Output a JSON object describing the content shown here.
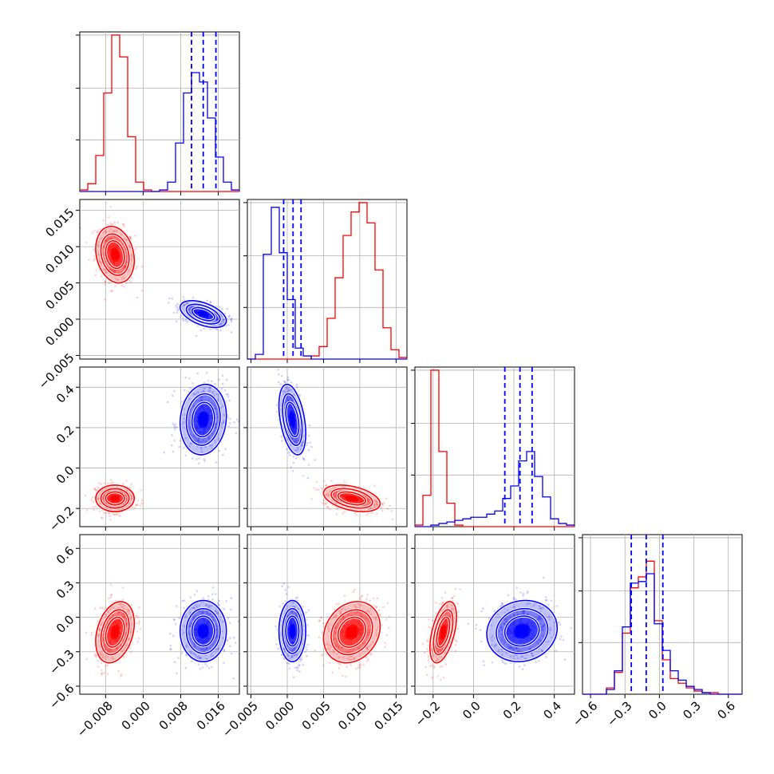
{
  "chart_data": {
    "type": "corner",
    "series": [
      {
        "name": "",
        "color": "#ff0000"
      },
      {
        "name": "",
        "color": "#0000ff"
      }
    ],
    "grid": true,
    "quantile_lines": {
      "series_color": "#0000ff",
      "style": "dashed"
    },
    "params": [
      {
        "range": [
          -0.0135,
          0.0205
        ],
        "ticks": [
          "−0.008",
          "0.000",
          "0.008",
          "0.016"
        ],
        "tick_values": [
          -0.008,
          0.0,
          0.008,
          0.016
        ]
      },
      {
        "range": [
          -0.0055,
          0.0165
        ],
        "ticks": [
          "−0.005",
          "0.000",
          "0.005",
          "0.010",
          "0.015"
        ],
        "tick_values": [
          -0.005,
          0.0,
          0.005,
          0.01,
          0.015
        ]
      },
      {
        "range": [
          -0.29,
          0.5
        ],
        "ticks": [
          "−0.2",
          "0.0",
          "0.2",
          "0.4"
        ],
        "tick_values": [
          -0.2,
          0.0,
          0.2,
          0.4
        ]
      },
      {
        "range": [
          -0.67,
          0.72
        ],
        "ticks": [
          "−0.6",
          "−0.3",
          "0.0",
          "0.3",
          "0.6"
        ],
        "tick_values": [
          -0.6,
          -0.3,
          0.0,
          0.3,
          0.6
        ]
      }
    ],
    "histograms": [
      {
        "param": 0,
        "hist_ticks": [
          0.33,
          0.66,
          1.0
        ],
        "bins": [
          -0.0135,
          -0.0118,
          -0.0101,
          -0.0084,
          -0.0067,
          -0.005,
          -0.0033,
          -0.0016,
          0.0001,
          0.0018,
          0.0035,
          0.0052,
          0.0069,
          0.0086,
          0.0103,
          0.012,
          0.0137,
          0.0154,
          0.0171,
          0.0188,
          0.0205
        ],
        "series": [
          {
            "name": "",
            "color": "#ff0000",
            "values": [
              0.01,
              0.05,
              0.23,
              0.63,
              1.0,
              0.86,
              0.35,
              0.06,
              0.01,
              0,
              0,
              0,
              0,
              0,
              0,
              0,
              0,
              0,
              0,
              0
            ]
          },
          {
            "name": "",
            "color": "#0000ff",
            "values": [
              0,
              0,
              0,
              0,
              0,
              0,
              0,
              0,
              0,
              0,
              0.01,
              0.06,
              0.31,
              0.63,
              0.76,
              0.7,
              0.47,
              0.22,
              0.06,
              0.01
            ]
          }
        ],
        "quantiles": [
          0.0103,
          0.0128,
          0.0155
        ]
      },
      {
        "param": 1,
        "hist_ticks": [
          0.33,
          0.66,
          1.0
        ],
        "bins": [
          -0.0055,
          -0.0044,
          -0.0033,
          -0.0022,
          -0.0011,
          0.0,
          0.0011,
          0.0022,
          0.0033,
          0.0044,
          0.0055,
          0.0066,
          0.0077,
          0.0088,
          0.0099,
          0.011,
          0.0121,
          0.0132,
          0.0143,
          0.0154,
          0.0165
        ],
        "series": [
          {
            "name": "",
            "color": "#ff0000",
            "values": [
              0,
              0,
              0,
              0,
              0,
              0,
              0,
              0,
              0.02,
              0.08,
              0.26,
              0.52,
              0.79,
              0.94,
              1.0,
              0.87,
              0.57,
              0.2,
              0.06,
              0.01
            ]
          },
          {
            "name": "",
            "color": "#0000ff",
            "values": [
              0,
              0.03,
              0.67,
              0.97,
              0.68,
              0.38,
              0.07,
              0.02,
              0,
              0,
              0,
              0,
              0,
              0,
              0,
              0,
              0,
              0,
              0,
              0
            ]
          }
        ],
        "quantiles": [
          -0.0005,
          0.0008,
          0.0019
        ]
      },
      {
        "param": 2,
        "hist_ticks": [
          0.33,
          0.66,
          1.0
        ],
        "bins": [
          -0.29,
          -0.2505,
          -0.211,
          -0.1715,
          -0.132,
          -0.0925,
          -0.053,
          -0.0135,
          0.026,
          0.0655,
          0.105,
          0.1445,
          0.184,
          0.2235,
          0.263,
          0.3025,
          0.342,
          0.3815,
          0.421,
          0.4605,
          0.5
        ],
        "series": [
          {
            "name": "",
            "color": "#ff0000",
            "values": [
              0.01,
              0.2,
              1.0,
              0.48,
              0.15,
              0.01,
              0,
              0,
              0,
              0,
              0,
              0,
              0,
              0,
              0,
              0,
              0,
              0,
              0,
              0
            ]
          },
          {
            "name": "",
            "color": "#0000ff",
            "values": [
              0,
              0,
              0.01,
              0.02,
              0.03,
              0.04,
              0.05,
              0.06,
              0.06,
              0.08,
              0.1,
              0.18,
              0.26,
              0.42,
              0.48,
              0.32,
              0.19,
              0.05,
              0.02,
              0.01
            ]
          }
        ],
        "quantiles": [
          0.155,
          0.23,
          0.29
        ]
      },
      {
        "param": 3,
        "hist_ticks": [
          0.33,
          0.66,
          1.0
        ],
        "bins": [
          -0.67,
          -0.6005,
          -0.531,
          -0.4615,
          -0.392,
          -0.3225,
          -0.253,
          -0.1835,
          -0.114,
          -0.0445,
          0.025,
          0.0945,
          0.164,
          0.2335,
          0.303,
          0.3725,
          0.442,
          0.5115,
          0.581,
          0.6505,
          0.72
        ],
        "series": [
          {
            "name": "",
            "color": "#ff0000",
            "values": [
              0,
              0,
              0,
              0.04,
              0.14,
              0.39,
              0.68,
              0.75,
              0.85,
              0.47,
              0.22,
              0.1,
              0.07,
              0.04,
              0.02,
              0.01,
              0.01,
              0,
              0,
              0
            ]
          },
          {
            "name": "",
            "color": "#0000ff",
            "values": [
              0,
              0,
              0,
              0.03,
              0.15,
              0.43,
              0.71,
              0.72,
              0.77,
              0.45,
              0.28,
              0.15,
              0.09,
              0.05,
              0.03,
              0.01,
              0,
              0,
              0,
              0
            ]
          }
        ],
        "quantiles": [
          -0.245,
          -0.115,
          0.03
        ]
      }
    ],
    "scatter_2d": [
      {
        "x_param": 0,
        "y_param": 1,
        "distributions": [
          {
            "color": "#ff0000",
            "mean": [
              -0.006,
              0.0089
            ],
            "sd": [
              0.002,
              0.0019
            ],
            "rho": -0.2,
            "n": 420
          },
          {
            "color": "#0000ff",
            "mean": [
              0.0128,
              0.0007
            ],
            "sd": [
              0.0024,
              0.0009
            ],
            "rho": -0.5,
            "n": 420
          }
        ]
      },
      {
        "x_param": 0,
        "y_param": 2,
        "distributions": [
          {
            "color": "#ff0000",
            "mean": [
              -0.006,
              -0.15
            ],
            "sd": [
              0.002,
              0.032
            ],
            "rho": 0.0,
            "n": 420
          },
          {
            "color": "#0000ff",
            "mean": [
              0.0128,
              0.24
            ],
            "sd": [
              0.0024,
              0.085
            ],
            "rho": 0.1,
            "n": 420
          }
        ]
      },
      {
        "x_param": 1,
        "y_param": 2,
        "distributions": [
          {
            "color": "#ff0000",
            "mean": [
              0.0089,
              -0.15
            ],
            "sd": [
              0.0019,
              0.032
            ],
            "rho": -0.4,
            "n": 420
          },
          {
            "color": "#0000ff",
            "mean": [
              0.0007,
              0.24
            ],
            "sd": [
              0.0009,
              0.085
            ],
            "rho": -0.4,
            "n": 420
          }
        ]
      },
      {
        "x_param": 0,
        "y_param": 3,
        "distributions": [
          {
            "color": "#ff0000",
            "mean": [
              -0.006,
              -0.13
            ],
            "sd": [
              0.002,
              0.13
            ],
            "rho": 0.3,
            "n": 420
          },
          {
            "color": "#0000ff",
            "mean": [
              0.0128,
              -0.12
            ],
            "sd": [
              0.0024,
              0.13
            ],
            "rho": 0.0,
            "n": 420
          }
        ]
      },
      {
        "x_param": 1,
        "y_param": 3,
        "distributions": [
          {
            "color": "#ff0000",
            "mean": [
              0.0089,
              -0.13
            ],
            "sd": [
              0.0019,
              0.13
            ],
            "rho": 0.2,
            "n": 420
          },
          {
            "color": "#0000ff",
            "mean": [
              0.0007,
              -0.12
            ],
            "sd": [
              0.0009,
              0.13
            ],
            "rho": 0.0,
            "n": 420
          }
        ]
      },
      {
        "x_param": 2,
        "y_param": 3,
        "distributions": [
          {
            "color": "#ff0000",
            "mean": [
              -0.15,
              -0.13
            ],
            "sd": [
              0.032,
              0.13
            ],
            "rho": 0.5,
            "n": 420
          },
          {
            "color": "#0000ff",
            "mean": [
              0.24,
              -0.12
            ],
            "sd": [
              0.085,
              0.13
            ],
            "rho": 0.1,
            "n": 420
          }
        ]
      }
    ]
  }
}
